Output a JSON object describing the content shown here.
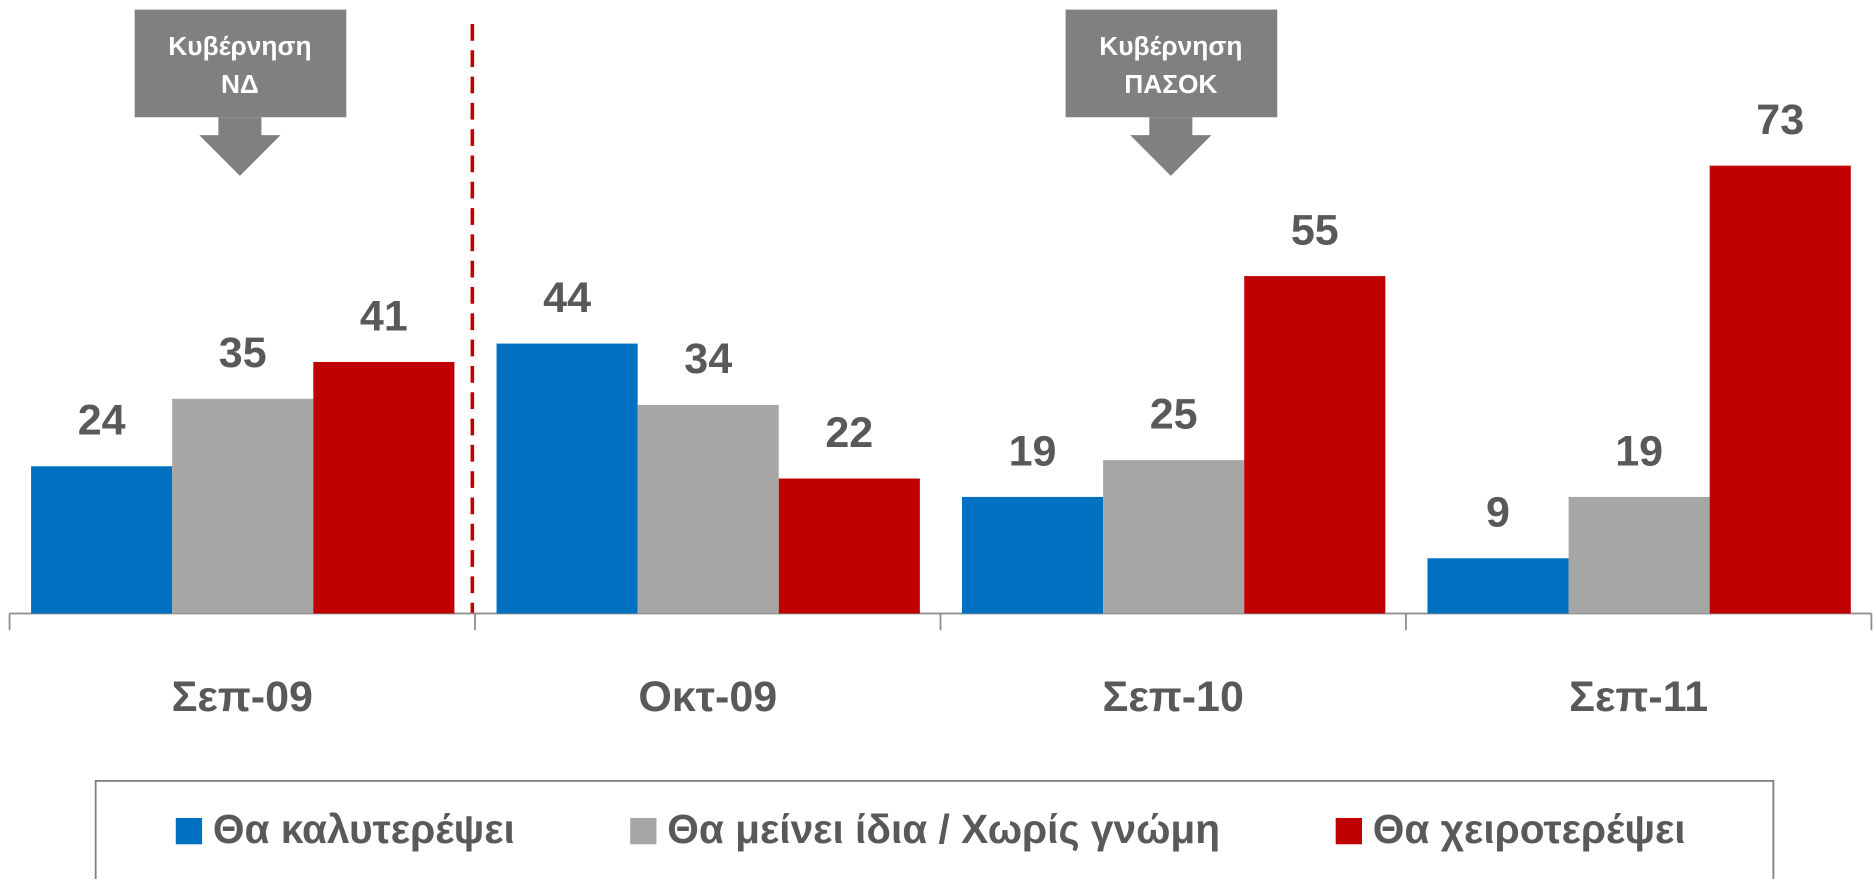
{
  "chart_data": {
    "type": "bar",
    "categories": [
      "Σεπ-09",
      "Οκτ-09",
      "Σεπ-10",
      "Σεπ-11"
    ],
    "series": [
      {
        "name": "Θα καλυτερέψει",
        "color": "#0070c0",
        "values": [
          24,
          44,
          19,
          9
        ]
      },
      {
        "name": "Θα μείνει ίδια / Χωρίς γνώμη",
        "color": "#a6a6a6",
        "values": [
          35,
          34,
          25,
          19
        ]
      },
      {
        "name": "Θα χειροτερέψει",
        "color": "#c00000",
        "values": [
          41,
          22,
          55,
          73
        ]
      }
    ],
    "ylim": [
      0,
      100
    ],
    "legend": "bottom",
    "annotations": [
      {
        "lines": [
          "Κυβέρνηση",
          "ΝΔ"
        ],
        "category": 0
      },
      {
        "lines": [
          "Κυβέρνηση",
          "ΠΑΣΟΚ"
        ],
        "category": 2
      }
    ]
  }
}
